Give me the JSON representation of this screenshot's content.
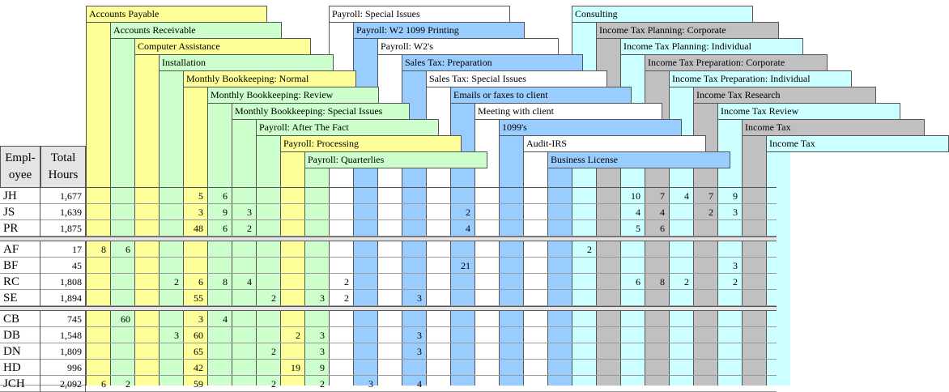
{
  "colors": {
    "yellow": "#ffff99",
    "green": "#ccffcc",
    "white": "#ffffff",
    "blue": "#99ccff",
    "cyan": "#ccffff",
    "gray": "#c0c0c0",
    "separator": "#e4e4e4"
  },
  "header": {
    "employee_label": "Empl-\noyee",
    "total_label": "Total\nHours"
  },
  "columns": [
    {
      "label": "Accounts Payable",
      "color": "yellow"
    },
    {
      "label": "Accounts Receivable",
      "color": "green"
    },
    {
      "label": "Computer Assistance",
      "color": "yellow"
    },
    {
      "label": "Installation",
      "color": "green"
    },
    {
      "label": "Monthly Bookkeeping: Normal",
      "color": "yellow"
    },
    {
      "label": "Monthly Bookkeeping: Review",
      "color": "green"
    },
    {
      "label": "Monthly Bookkeeping: Special Issues",
      "color": "green"
    },
    {
      "label": "Payroll: After The Fact",
      "color": "green"
    },
    {
      "label": "Payroll: Processing",
      "color": "yellow"
    },
    {
      "label": "Payroll: Quarterlies",
      "color": "green"
    },
    {
      "label": "Payroll: Special Issues",
      "color": "white"
    },
    {
      "label": "Payroll: W2  1099 Printing",
      "color": "blue"
    },
    {
      "label": "Payroll: W2's",
      "color": "white"
    },
    {
      "label": "Sales Tax: Preparation",
      "color": "blue"
    },
    {
      "label": "Sales Tax: Special Issues",
      "color": "white"
    },
    {
      "label": "Emails or faxes to client",
      "color": "blue"
    },
    {
      "label": "Meeting with client",
      "color": "white"
    },
    {
      "label": "1099's",
      "color": "blue"
    },
    {
      "label": "Audit-IRS",
      "color": "white"
    },
    {
      "label": "Business License",
      "color": "blue"
    },
    {
      "label": "Consulting",
      "color": "cyan"
    },
    {
      "label": "Income Tax Planning: Corporate",
      "color": "gray"
    },
    {
      "label": "Income Tax Planning: Individual",
      "color": "cyan"
    },
    {
      "label": "Income Tax Preparation: Corporate",
      "color": "gray"
    },
    {
      "label": "Income Tax Preparation: Individual",
      "color": "cyan"
    },
    {
      "label": "Income Tax Research",
      "color": "gray"
    },
    {
      "label": "Income Tax Review",
      "color": "cyan"
    },
    {
      "label": "Income Tax",
      "color": "gray"
    },
    {
      "label": "Income Tax",
      "color": "cyan"
    }
  ],
  "groups": [
    [
      {
        "emp": "JH",
        "total": "1,677",
        "cells": [
          "",
          "",
          "",
          "",
          "5",
          "6",
          "",
          "",
          "",
          "",
          "",
          "",
          "",
          "",
          "",
          "",
          "",
          "",
          "",
          "",
          "",
          "",
          "10",
          "7",
          "4",
          "7",
          "9",
          "",
          ""
        ]
      },
      {
        "emp": "JS",
        "total": "1,639",
        "cells": [
          "",
          "",
          "",
          "",
          "3",
          "9",
          "3",
          "",
          "",
          "",
          "",
          "",
          "",
          "",
          "",
          "2",
          "",
          "",
          "",
          "",
          "",
          "",
          "4",
          "4",
          "",
          "2",
          "3",
          "",
          ""
        ]
      },
      {
        "emp": "PR",
        "total": "1,875",
        "cells": [
          "",
          "",
          "",
          "",
          "48",
          "6",
          "2",
          "",
          "",
          "",
          "",
          "",
          "",
          "",
          "",
          "4",
          "",
          "",
          "",
          "",
          "",
          "",
          "5",
          "6",
          "",
          "",
          "",
          "",
          ""
        ]
      }
    ],
    [
      {
        "emp": "AF",
        "total": "17",
        "cells": [
          "8",
          "6",
          "",
          "",
          "",
          "",
          "",
          "",
          "",
          "",
          "",
          "",
          "",
          "",
          "",
          "",
          "",
          "",
          "",
          "",
          "2",
          "",
          "",
          "",
          "",
          "",
          "",
          "",
          ""
        ]
      },
      {
        "emp": "BF",
        "total": "45",
        "cells": [
          "",
          "",
          "",
          "",
          "",
          "",
          "",
          "",
          "",
          "",
          "",
          "",
          "",
          "",
          "",
          "21",
          "",
          "",
          "",
          "",
          "",
          "",
          "",
          "",
          "",
          "",
          "3",
          "",
          ""
        ]
      },
      {
        "emp": "RC",
        "total": "1,808",
        "cells": [
          "",
          "",
          "",
          "2",
          "6",
          "8",
          "4",
          "",
          "",
          "",
          "2",
          "",
          "",
          "",
          "",
          "",
          "",
          "",
          "",
          "",
          "",
          "",
          "6",
          "8",
          "2",
          "",
          "2",
          "",
          ""
        ]
      },
      {
        "emp": "SE",
        "total": "1,894",
        "cells": [
          "",
          "",
          "",
          "",
          "55",
          "",
          "",
          "2",
          "",
          "3",
          "2",
          "",
          "",
          "3",
          "",
          "",
          "",
          "",
          "",
          "",
          "",
          "",
          "",
          "",
          "",
          "",
          "",
          "",
          ""
        ]
      }
    ],
    [
      {
        "emp": "CB",
        "total": "745",
        "cells": [
          "",
          "60",
          "",
          "",
          "3",
          "4",
          "",
          "",
          "",
          "",
          "",
          "",
          "",
          "",
          "",
          "",
          "",
          "",
          "",
          "",
          "",
          "",
          "",
          "",
          "",
          "",
          "",
          "",
          ""
        ]
      },
      {
        "emp": "DB",
        "total": "1,548",
        "cells": [
          "",
          "",
          "",
          "3",
          "60",
          "",
          "",
          "",
          "2",
          "3",
          "",
          "",
          "",
          "3",
          "",
          "",
          "",
          "",
          "",
          "",
          "",
          "",
          "",
          "",
          "",
          "",
          "",
          "",
          ""
        ]
      },
      {
        "emp": "DN",
        "total": "1,809",
        "cells": [
          "",
          "",
          "",
          "",
          "65",
          "",
          "",
          "2",
          "",
          "3",
          "",
          "",
          "",
          "3",
          "",
          "",
          "",
          "",
          "",
          "",
          "",
          "",
          "",
          "",
          "",
          "",
          "",
          "",
          ""
        ]
      },
      {
        "emp": "HD",
        "total": "996",
        "cells": [
          "",
          "",
          "",
          "",
          "42",
          "",
          "",
          "",
          "19",
          "9",
          "",
          "",
          "",
          "",
          "",
          "",
          "",
          "",
          "",
          "",
          "",
          "",
          "",
          "",
          "",
          "",
          "",
          "",
          ""
        ]
      },
      {
        "emp": "JCH",
        "total": "2,092",
        "cells": [
          "6",
          "2",
          "",
          "",
          "59",
          "",
          "",
          "2",
          "",
          "2",
          "",
          "3",
          "",
          "4",
          "",
          "",
          "",
          "",
          "",
          "",
          "",
          "",
          "",
          "",
          "",
          "",
          "",
          "",
          ""
        ]
      }
    ]
  ]
}
